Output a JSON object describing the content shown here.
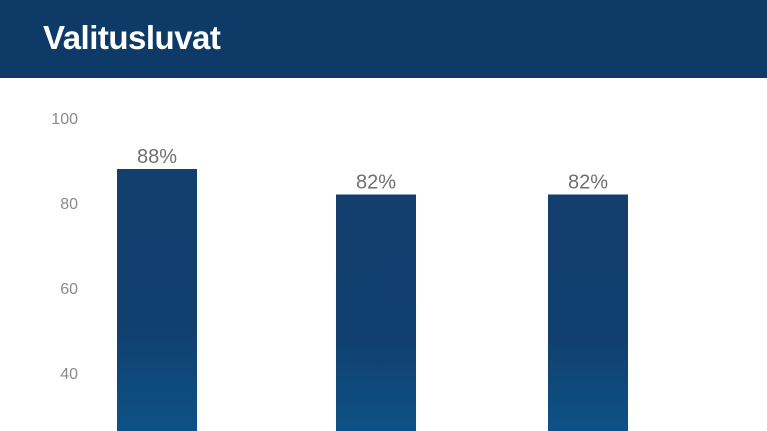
{
  "header": {
    "title": "Valitusluvat"
  },
  "colors": {
    "header_bg": "#0d3a66",
    "bar_top": "#123f6e",
    "bar_bottom": "#0d5286"
  },
  "chart_data": {
    "type": "bar",
    "title": "Valitusluvat",
    "categories": [
      "",
      "",
      ""
    ],
    "values": [
      88,
      82,
      82
    ],
    "data_labels": [
      "88%",
      "82%",
      "82%"
    ],
    "yticks": [
      "100",
      "80",
      "60",
      "40"
    ],
    "ylim": [
      0,
      100
    ],
    "grid": false
  }
}
